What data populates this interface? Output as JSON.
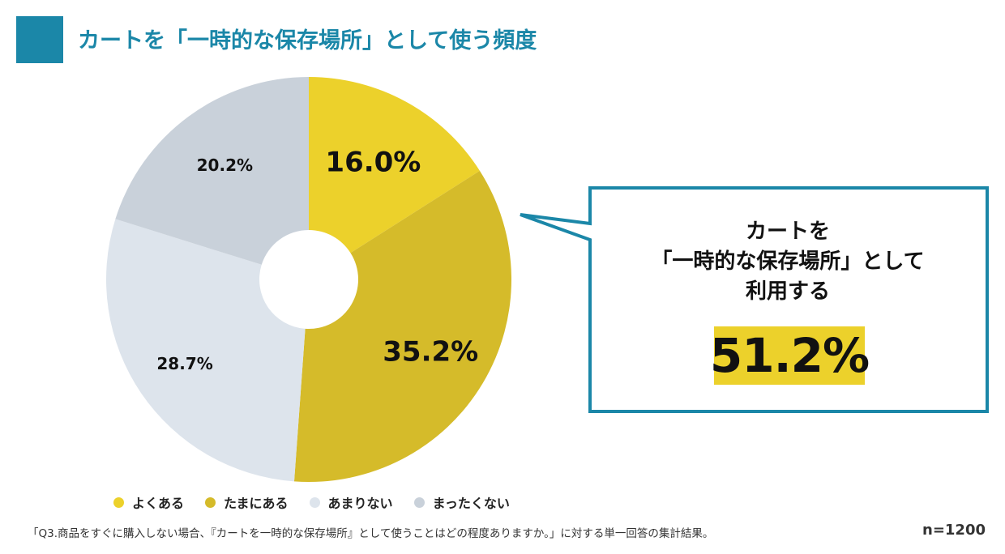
{
  "title": "カートを「一時的な保存場所」として使う頻度",
  "colors": {
    "accent": "#1b87a8",
    "highlight": "#ecd12b"
  },
  "chart_data": {
    "type": "pie",
    "donut": true,
    "categories": [
      "よくある",
      "たまにある",
      "あまりない",
      "まったくない"
    ],
    "values": [
      16.0,
      35.2,
      28.7,
      20.2
    ],
    "labels": [
      "16.0%",
      "35.2%",
      "28.7%",
      "20.2%"
    ],
    "colors": [
      "#ecd12b",
      "#d5bb2a",
      "#dde4ec",
      "#c9d1da"
    ],
    "legend_position": "bottom"
  },
  "callout": {
    "lines": [
      "カートを",
      "「一時的な保存場所」として",
      "利用する"
    ],
    "value": "51.2%"
  },
  "footnote": "「Q3.商品をすぐに購入しない場合、『カートを一時的な保存場所』として使うことはどの程度ありますか。」に対する単一回答の集計結果。",
  "sample_size": "n=1200"
}
